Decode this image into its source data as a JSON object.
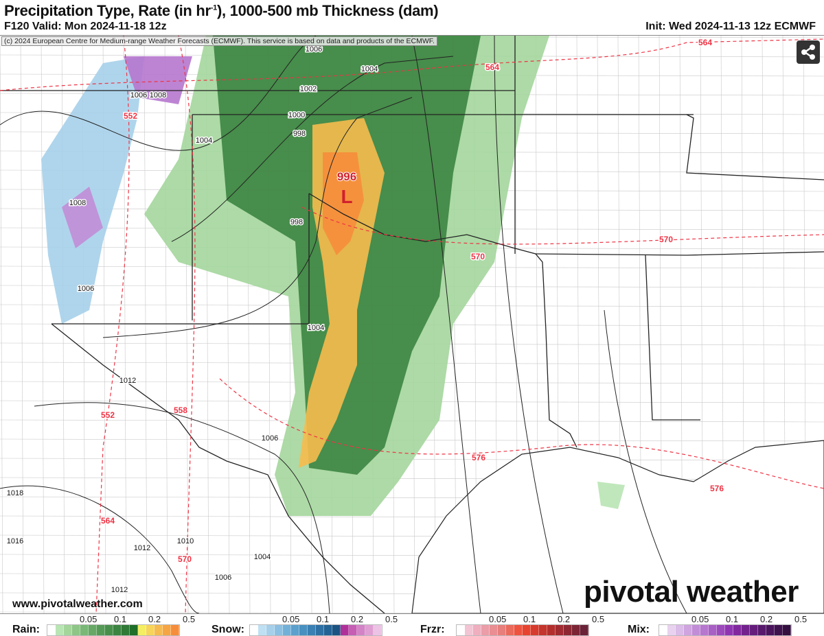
{
  "header": {
    "title_pre": "Precipitation Type, Rate (in hr",
    "title_sup": "-1",
    "title_post": "), 1000-500 mb Thickness (dam)",
    "valid": "F120 Valid: Mon 2024-11-18 12z",
    "init": "Init: Wed 2024-11-13 12z ECMWF"
  },
  "copyright": "(c) 2024 European Centre for Medium-range Weather Forecasts (ECMWF). This service is based on data and products of the ECMWF.",
  "share_icon": "share-icon",
  "website": "www.pivotalweather.com",
  "logo": "pivotal weather",
  "low": {
    "pressure": "996",
    "symbol": "L"
  },
  "isobar_labels": [
    "1006",
    "1004",
    "1002",
    "1000",
    "998",
    "1004",
    "1006",
    "1008",
    "1008",
    "998",
    "1006",
    "1004",
    "1012",
    "1006",
    "1018",
    "1016",
    "1012",
    "1010",
    "1004",
    "1006",
    "1012"
  ],
  "thickness_labels": [
    "564",
    "564",
    "552",
    "570",
    "570",
    "552",
    "558",
    "576",
    "576",
    "564",
    "570"
  ],
  "legend": [
    {
      "label": "Rain:",
      "ticks": [
        "0.05",
        "0.1",
        "0.2",
        "0.5"
      ],
      "colors": [
        "#ffffff",
        "#b9e4b4",
        "#a4d69c",
        "#8ec687",
        "#79b877",
        "#67a867",
        "#569a58",
        "#488f4c",
        "#3c8441",
        "#2f7a36",
        "#1f6e2a",
        "#f4ee63",
        "#f7d45a",
        "#f6bb4e",
        "#f6a545",
        "#f68d3b"
      ]
    },
    {
      "label": "Snow:",
      "ticks": [
        "0.05",
        "0.1",
        "0.2",
        "0.5"
      ],
      "colors": [
        "#ffffff",
        "#bfe0f2",
        "#a6d0ea",
        "#8cc0e2",
        "#72b0d8",
        "#5ca0cd",
        "#4890c0",
        "#3a80b3",
        "#2e70a4",
        "#236294",
        "#1b5482",
        "#b0309a",
        "#c65fb4",
        "#d384c6",
        "#df9fd3",
        "#ecc3e5"
      ]
    },
    {
      "label": "Frzr:",
      "ticks": [
        "0.05",
        "0.1",
        "0.2",
        "0.5"
      ],
      "colors": [
        "#ffffff",
        "#f3c4d4",
        "#efafbf",
        "#eb9da8",
        "#e98e92",
        "#e77f7c",
        "#ea6a5c",
        "#ee5340",
        "#e64430",
        "#d63b2e",
        "#c4352d",
        "#b32f2e",
        "#a02b30",
        "#8d2832",
        "#7b2535",
        "#6a2238"
      ]
    },
    {
      "label": "Mix:",
      "ticks": [
        "0.05",
        "0.1",
        "0.2",
        "0.5"
      ],
      "colors": [
        "#ffffff",
        "#e8d2ef",
        "#dbbbe7",
        "#cfa4df",
        "#c28dd7",
        "#b677ce",
        "#a960c5",
        "#9c4abc",
        "#9035b2",
        "#82289f",
        "#73228d",
        "#651d7c",
        "#57196c",
        "#4a155c",
        "#3e124d",
        "#33103f"
      ]
    }
  ]
}
